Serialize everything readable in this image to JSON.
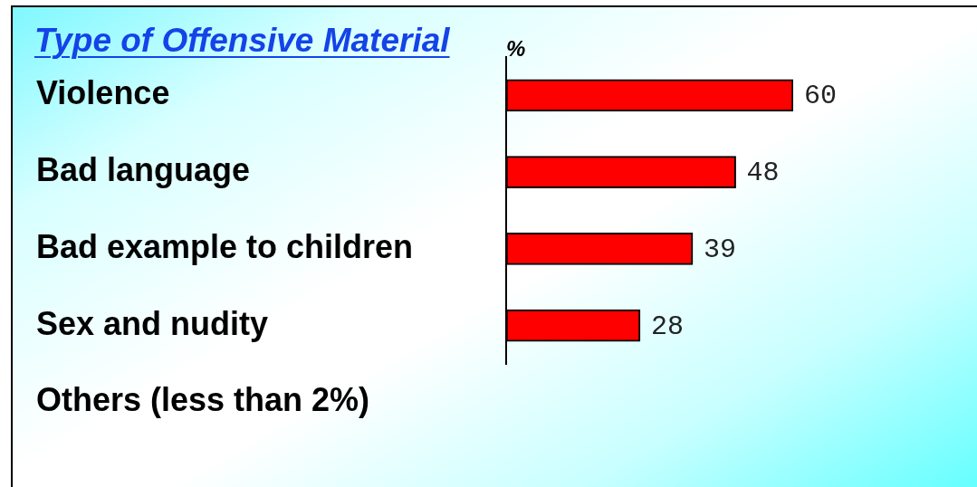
{
  "chart_data": {
    "type": "bar",
    "orientation": "horizontal",
    "title": "Type of Offensive Material",
    "xlabel": "%",
    "categories": [
      "Violence",
      "Bad language",
      "Bad example to children",
      "Sex and nudity"
    ],
    "values": [
      60,
      48,
      39,
      28
    ],
    "color": "#ff0000",
    "tick_labels": "y",
    "data_labels": true,
    "annotations": [
      "Others (less than 2%)"
    ]
  }
}
